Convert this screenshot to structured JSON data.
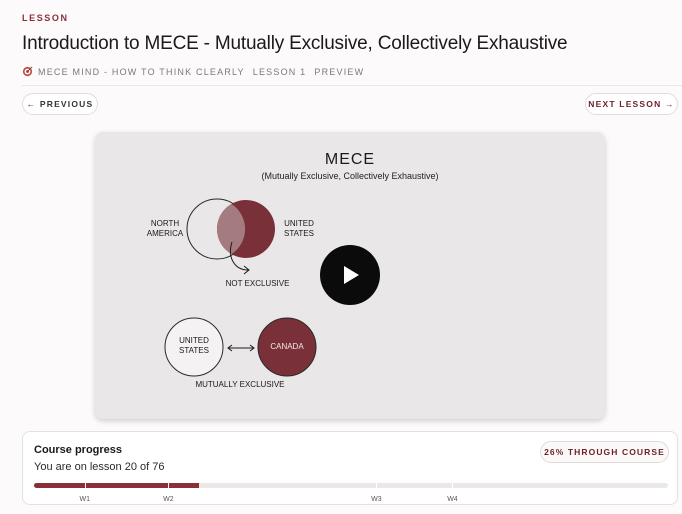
{
  "eyebrow": "LESSON",
  "title": "Introduction to MECE - Mutually Exclusive, Collectively Exhaustive",
  "meta": {
    "course": "MECE MIND - HOW TO THINK CLEARLY",
    "lesson": "LESSON 1",
    "status": "PREVIEW",
    "icon": "target-icon"
  },
  "nav": {
    "previous_label": "← PREVIOUS",
    "next_label": "NEXT LESSON →"
  },
  "video": {
    "title": "MECE",
    "subtitle": "(Mutually Exclusive, Collectively Exhaustive)",
    "labels": {
      "north_america_1": "NORTH",
      "north_america_2": "AMERICA",
      "us_top_1": "UNITED",
      "us_top_2": "STATES",
      "not_exclusive": "NOT EXCLUSIVE",
      "us_bottom_1": "UNITED",
      "us_bottom_2": "STATES",
      "canada": "CANADA",
      "mutually_exclusive": "MUTUALLY EXCLUSIVE"
    },
    "play_icon": "play-icon"
  },
  "progress": {
    "title": "Course progress",
    "subtitle": "You are on lesson 20 of 76",
    "badge": "26% THROUGH COURSE",
    "fraction": 0.26,
    "weeks": [
      {
        "label": "W1",
        "at": 0.08
      },
      {
        "label": "W2",
        "at": 0.212
      },
      {
        "label": "W3",
        "at": 0.54
      },
      {
        "label": "W4",
        "at": 0.66
      }
    ]
  },
  "colors": {
    "accent": "#8a2e38",
    "circle_fill": "#7a3038"
  }
}
